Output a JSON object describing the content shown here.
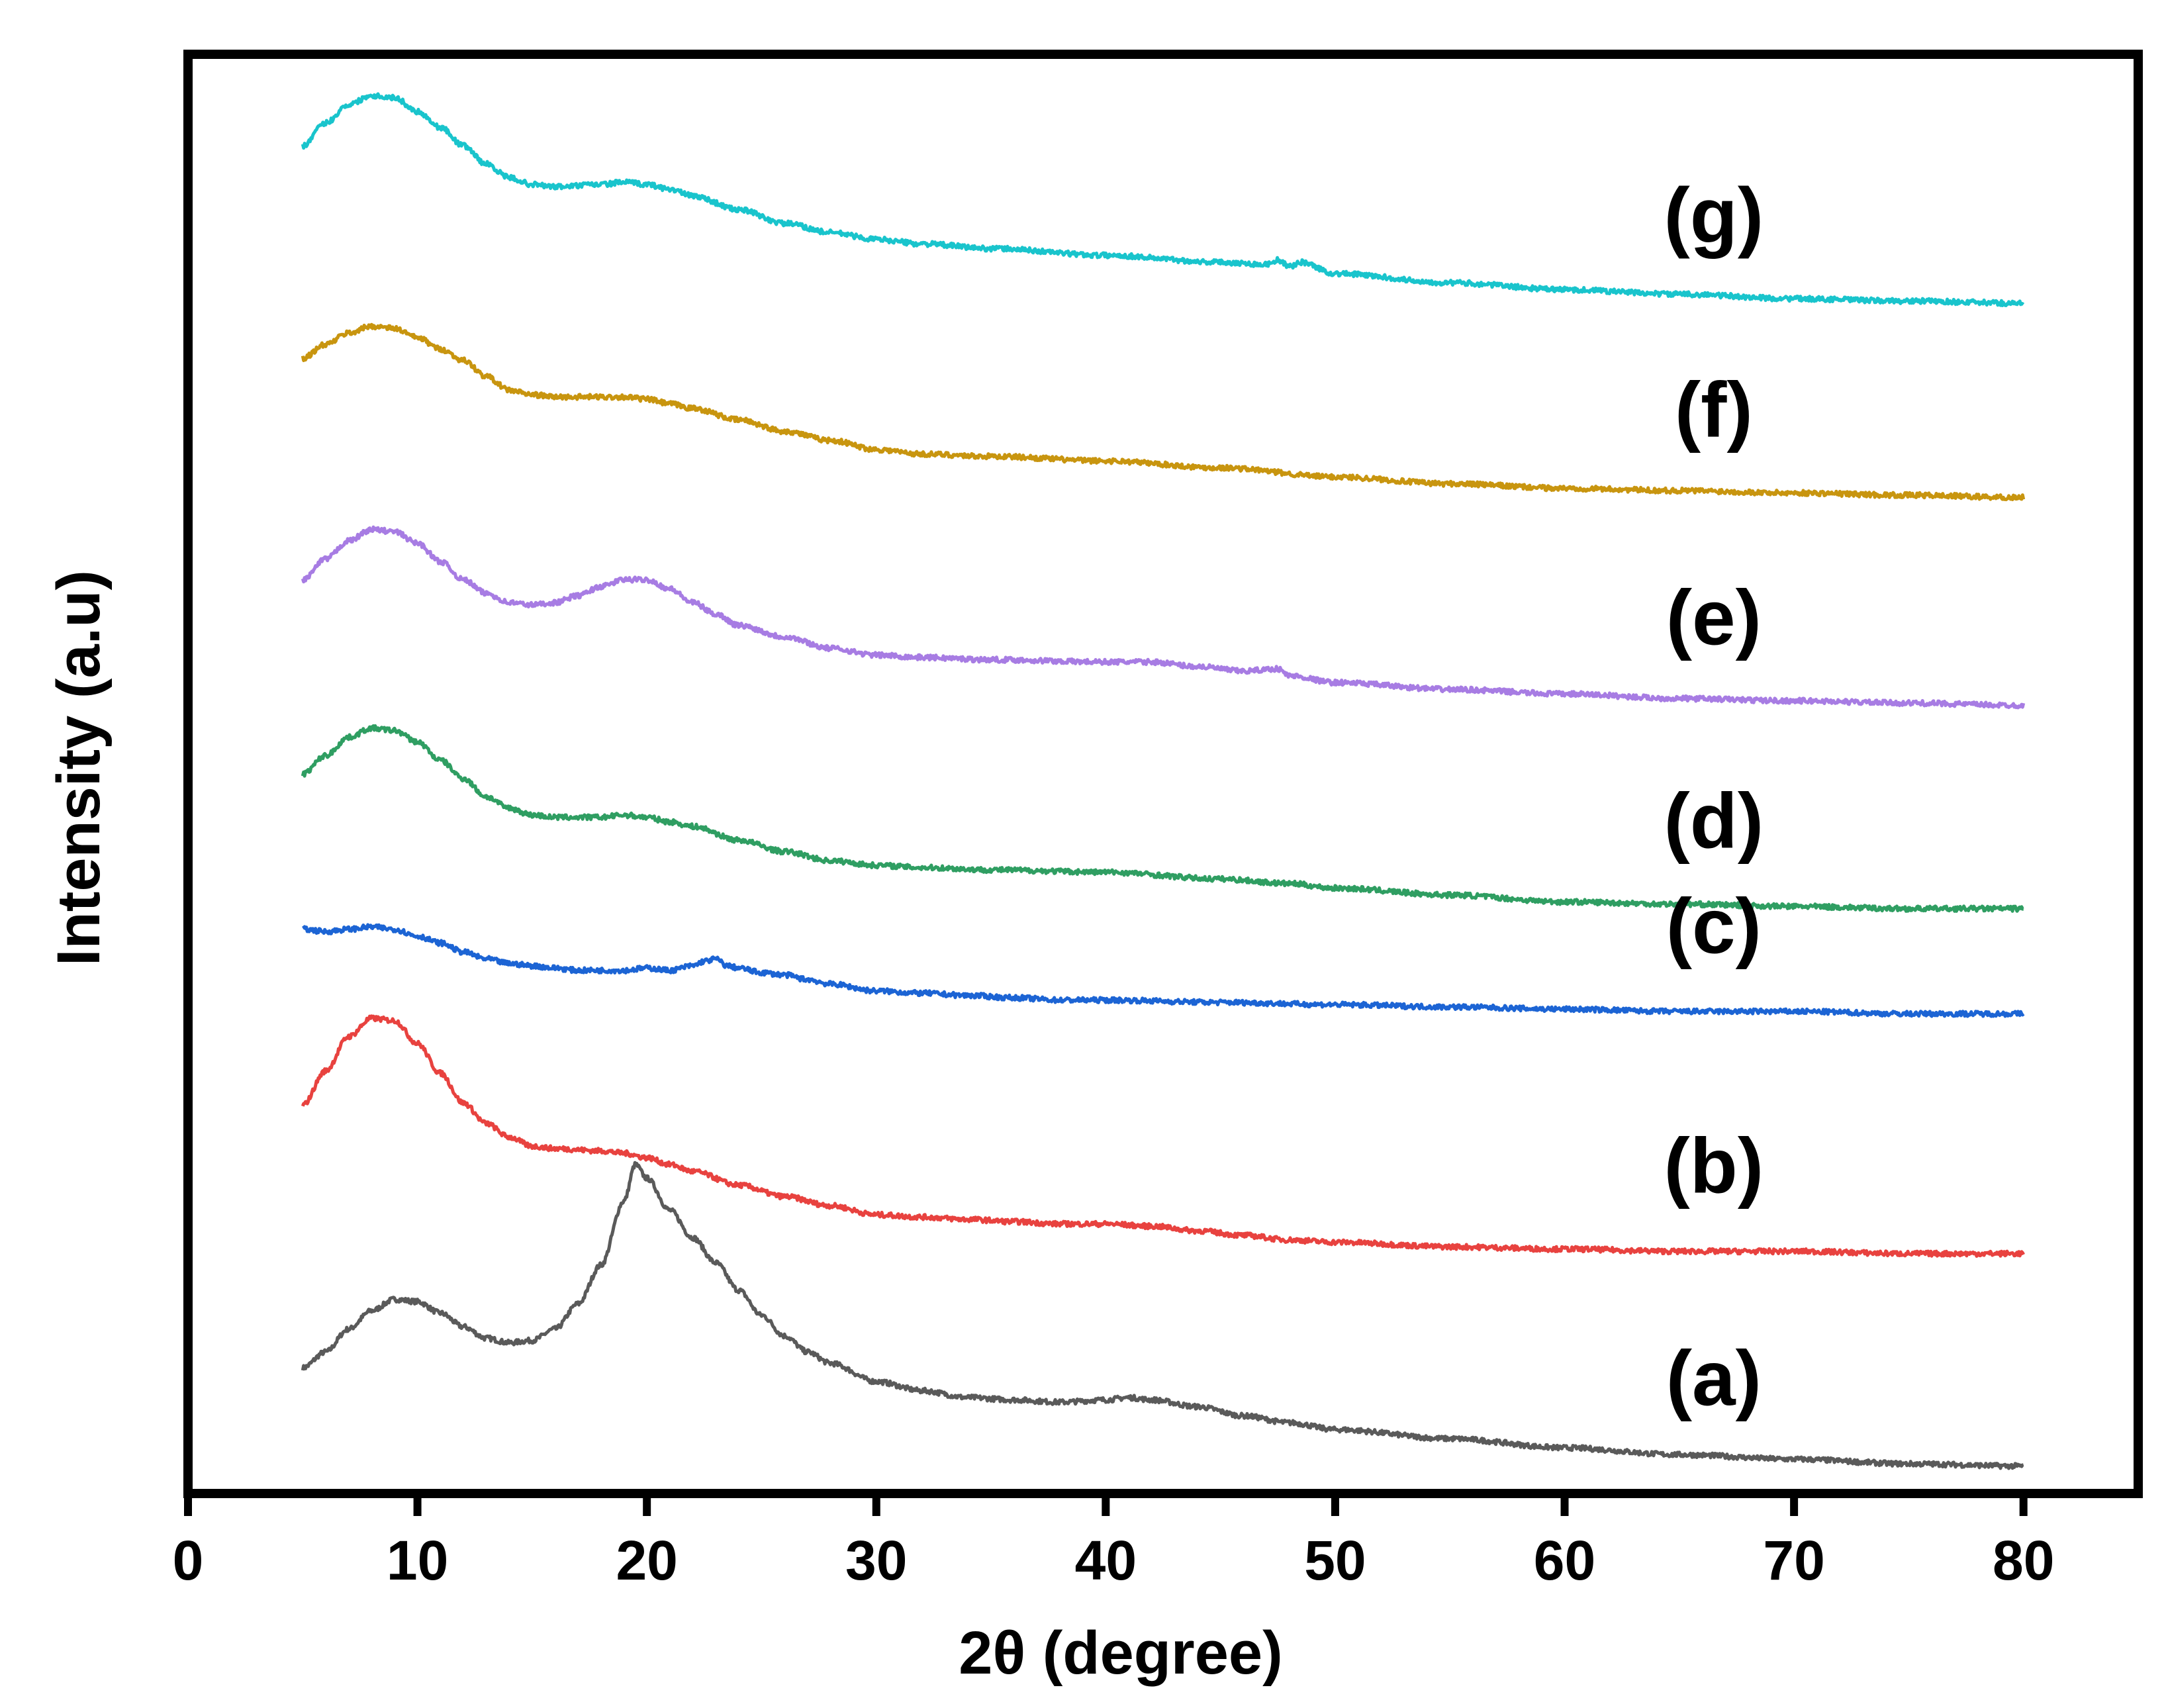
{
  "chart_data": {
    "type": "line",
    "title": "",
    "xlabel": "2θ (degree)",
    "ylabel": "Intensity (a.u)",
    "xlim": [
      0,
      85
    ],
    "ylim": [
      0,
      6.3
    ],
    "xticks": [
      "0",
      "10",
      "20",
      "30",
      "40",
      "50",
      "60",
      "70",
      "80"
    ],
    "yticks_shown": false,
    "grid": false,
    "legend": "labels placed at right end of each curve",
    "series": [
      {
        "name": "(a)",
        "color": "#5a5a5a",
        "offset": 0.0,
        "points": [
          [
            5,
            0.55
          ],
          [
            6,
            0.62
          ],
          [
            7,
            0.72
          ],
          [
            8,
            0.8
          ],
          [
            9,
            0.85
          ],
          [
            10,
            0.84
          ],
          [
            11,
            0.79
          ],
          [
            12,
            0.73
          ],
          [
            13,
            0.68
          ],
          [
            14,
            0.66
          ],
          [
            15,
            0.67
          ],
          [
            16,
            0.72
          ],
          [
            17,
            0.83
          ],
          [
            18,
            1.0
          ],
          [
            19,
            1.28
          ],
          [
            19.5,
            1.44
          ],
          [
            20,
            1.38
          ],
          [
            21,
            1.24
          ],
          [
            22,
            1.12
          ],
          [
            23,
            1.01
          ],
          [
            24,
            0.89
          ],
          [
            25,
            0.78
          ],
          [
            26,
            0.69
          ],
          [
            27,
            0.62
          ],
          [
            28,
            0.57
          ],
          [
            30,
            0.49
          ],
          [
            32,
            0.45
          ],
          [
            34,
            0.42
          ],
          [
            36,
            0.41
          ],
          [
            38,
            0.4
          ],
          [
            40,
            0.41
          ],
          [
            41,
            0.42
          ],
          [
            42,
            0.41
          ],
          [
            44,
            0.38
          ],
          [
            46,
            0.34
          ],
          [
            48,
            0.31
          ],
          [
            50,
            0.28
          ],
          [
            55,
            0.24
          ],
          [
            60,
            0.2
          ],
          [
            65,
            0.17
          ],
          [
            70,
            0.15
          ],
          [
            75,
            0.13
          ],
          [
            80,
            0.12
          ]
        ]
      },
      {
        "name": "(b)",
        "color": "#e8423f",
        "offset": 1.05,
        "points": [
          [
            5,
            0.65
          ],
          [
            6,
            0.8
          ],
          [
            7,
            0.95
          ],
          [
            8,
            1.03
          ],
          [
            9,
            1.02
          ],
          [
            10,
            0.92
          ],
          [
            11,
            0.79
          ],
          [
            12,
            0.66
          ],
          [
            13,
            0.57
          ],
          [
            14,
            0.51
          ],
          [
            15,
            0.47
          ],
          [
            16,
            0.46
          ],
          [
            18,
            0.45
          ],
          [
            19,
            0.44
          ],
          [
            20,
            0.42
          ],
          [
            21,
            0.39
          ],
          [
            22,
            0.36
          ],
          [
            24,
            0.3
          ],
          [
            26,
            0.25
          ],
          [
            28,
            0.21
          ],
          [
            30,
            0.17
          ],
          [
            32,
            0.16
          ],
          [
            34,
            0.15
          ],
          [
            36,
            0.14
          ],
          [
            38,
            0.13
          ],
          [
            40,
            0.13
          ],
          [
            42,
            0.12
          ],
          [
            44,
            0.1
          ],
          [
            46,
            0.08
          ],
          [
            48,
            0.06
          ],
          [
            50,
            0.05
          ],
          [
            55,
            0.03
          ],
          [
            60,
            0.02
          ],
          [
            65,
            0.01
          ],
          [
            70,
            0.01
          ],
          [
            75,
            0.0
          ],
          [
            80,
            0.0
          ]
        ]
      },
      {
        "name": "(c)",
        "color": "#1c64d4",
        "offset": 2.1,
        "points": [
          [
            5,
            0.37
          ],
          [
            6,
            0.36
          ],
          [
            7,
            0.37
          ],
          [
            8,
            0.38
          ],
          [
            9,
            0.37
          ],
          [
            10,
            0.34
          ],
          [
            11,
            0.31
          ],
          [
            12,
            0.27
          ],
          [
            13,
            0.24
          ],
          [
            14,
            0.22
          ],
          [
            15,
            0.21
          ],
          [
            16,
            0.2
          ],
          [
            17,
            0.19
          ],
          [
            18,
            0.19
          ],
          [
            19,
            0.19
          ],
          [
            20,
            0.2
          ],
          [
            21,
            0.19
          ],
          [
            22,
            0.21
          ],
          [
            22.5,
            0.23
          ],
          [
            23,
            0.24
          ],
          [
            23.5,
            0.21
          ],
          [
            24,
            0.2
          ],
          [
            25,
            0.18
          ],
          [
            26,
            0.17
          ],
          [
            27,
            0.15
          ],
          [
            28,
            0.13
          ],
          [
            30,
            0.1
          ],
          [
            32,
            0.09
          ],
          [
            34,
            0.08
          ],
          [
            36,
            0.07
          ],
          [
            38,
            0.06
          ],
          [
            40,
            0.06
          ],
          [
            45,
            0.05
          ],
          [
            50,
            0.04
          ],
          [
            55,
            0.03
          ],
          [
            60,
            0.02
          ],
          [
            65,
            0.01
          ],
          [
            70,
            0.01
          ],
          [
            75,
            0.0
          ],
          [
            80,
            0.0
          ]
        ]
      },
      {
        "name": "(d)",
        "color": "#2f9e62",
        "offset": 2.55,
        "points": [
          [
            5,
            0.6
          ],
          [
            6,
            0.68
          ],
          [
            7,
            0.76
          ],
          [
            8,
            0.8
          ],
          [
            9,
            0.79
          ],
          [
            10,
            0.74
          ],
          [
            11,
            0.66
          ],
          [
            12,
            0.58
          ],
          [
            13,
            0.5
          ],
          [
            14,
            0.45
          ],
          [
            15,
            0.42
          ],
          [
            16,
            0.41
          ],
          [
            18,
            0.41
          ],
          [
            19,
            0.42
          ],
          [
            20,
            0.41
          ],
          [
            21,
            0.39
          ],
          [
            22,
            0.37
          ],
          [
            24,
            0.31
          ],
          [
            26,
            0.26
          ],
          [
            28,
            0.22
          ],
          [
            30,
            0.2
          ],
          [
            32,
            0.19
          ],
          [
            35,
            0.18
          ],
          [
            40,
            0.17
          ],
          [
            45,
            0.14
          ],
          [
            48,
            0.12
          ],
          [
            50,
            0.1
          ],
          [
            55,
            0.07
          ],
          [
            60,
            0.04
          ],
          [
            65,
            0.03
          ],
          [
            70,
            0.02
          ],
          [
            75,
            0.01
          ],
          [
            80,
            0.01
          ]
        ]
      },
      {
        "name": "(e)",
        "color": "#a77ce3",
        "offset": 3.45,
        "points": [
          [
            5,
            0.55
          ],
          [
            6,
            0.64
          ],
          [
            7,
            0.72
          ],
          [
            8,
            0.77
          ],
          [
            9,
            0.76
          ],
          [
            10,
            0.71
          ],
          [
            11,
            0.63
          ],
          [
            12,
            0.55
          ],
          [
            13,
            0.49
          ],
          [
            14,
            0.45
          ],
          [
            15,
            0.44
          ],
          [
            16,
            0.45
          ],
          [
            17,
            0.48
          ],
          [
            18,
            0.52
          ],
          [
            19,
            0.55
          ],
          [
            20,
            0.55
          ],
          [
            21,
            0.51
          ],
          [
            22,
            0.45
          ],
          [
            23,
            0.4
          ],
          [
            24,
            0.35
          ],
          [
            26,
            0.3
          ],
          [
            28,
            0.25
          ],
          [
            30,
            0.22
          ],
          [
            32,
            0.21
          ],
          [
            35,
            0.2
          ],
          [
            40,
            0.19
          ],
          [
            42,
            0.19
          ],
          [
            44,
            0.17
          ],
          [
            46,
            0.15
          ],
          [
            47.5,
            0.16
          ],
          [
            48,
            0.13
          ],
          [
            50,
            0.1
          ],
          [
            55,
            0.07
          ],
          [
            60,
            0.05
          ],
          [
            65,
            0.03
          ],
          [
            70,
            0.02
          ],
          [
            75,
            0.01
          ],
          [
            80,
            0.0
          ]
        ]
      },
      {
        "name": "(f)",
        "color": "#c8950f",
        "offset": 4.35,
        "points": [
          [
            5,
            0.62
          ],
          [
            6,
            0.68
          ],
          [
            7,
            0.73
          ],
          [
            8,
            0.76
          ],
          [
            9,
            0.75
          ],
          [
            10,
            0.71
          ],
          [
            11,
            0.66
          ],
          [
            12,
            0.61
          ],
          [
            13,
            0.54
          ],
          [
            14,
            0.48
          ],
          [
            15,
            0.46
          ],
          [
            16,
            0.45
          ],
          [
            18,
            0.45
          ],
          [
            19,
            0.45
          ],
          [
            20,
            0.44
          ],
          [
            21,
            0.42
          ],
          [
            22,
            0.4
          ],
          [
            24,
            0.35
          ],
          [
            26,
            0.3
          ],
          [
            28,
            0.26
          ],
          [
            30,
            0.22
          ],
          [
            32,
            0.2
          ],
          [
            35,
            0.19
          ],
          [
            40,
            0.17
          ],
          [
            45,
            0.14
          ],
          [
            50,
            0.1
          ],
          [
            55,
            0.07
          ],
          [
            60,
            0.05
          ],
          [
            65,
            0.04
          ],
          [
            70,
            0.03
          ],
          [
            75,
            0.02
          ],
          [
            80,
            0.01
          ]
        ]
      },
      {
        "name": "(g)",
        "color": "#19c4cc",
        "offset": 5.2,
        "points": [
          [
            5,
            0.7
          ],
          [
            6,
            0.8
          ],
          [
            7,
            0.88
          ],
          [
            8,
            0.92
          ],
          [
            9,
            0.91
          ],
          [
            10,
            0.85
          ],
          [
            11,
            0.78
          ],
          [
            12,
            0.7
          ],
          [
            13,
            0.62
          ],
          [
            14,
            0.56
          ],
          [
            15,
            0.53
          ],
          [
            16,
            0.52
          ],
          [
            18,
            0.53
          ],
          [
            19,
            0.54
          ],
          [
            20,
            0.53
          ],
          [
            21,
            0.51
          ],
          [
            22,
            0.48
          ],
          [
            24,
            0.42
          ],
          [
            26,
            0.36
          ],
          [
            28,
            0.32
          ],
          [
            30,
            0.29
          ],
          [
            32,
            0.27
          ],
          [
            35,
            0.25
          ],
          [
            40,
            0.22
          ],
          [
            45,
            0.19
          ],
          [
            47,
            0.18
          ],
          [
            47.5,
            0.2
          ],
          [
            48,
            0.17
          ],
          [
            48.5,
            0.19
          ],
          [
            50,
            0.14
          ],
          [
            55,
            0.1
          ],
          [
            60,
            0.07
          ],
          [
            65,
            0.05
          ],
          [
            70,
            0.03
          ],
          [
            75,
            0.02
          ],
          [
            80,
            0.01
          ]
        ]
      }
    ]
  }
}
